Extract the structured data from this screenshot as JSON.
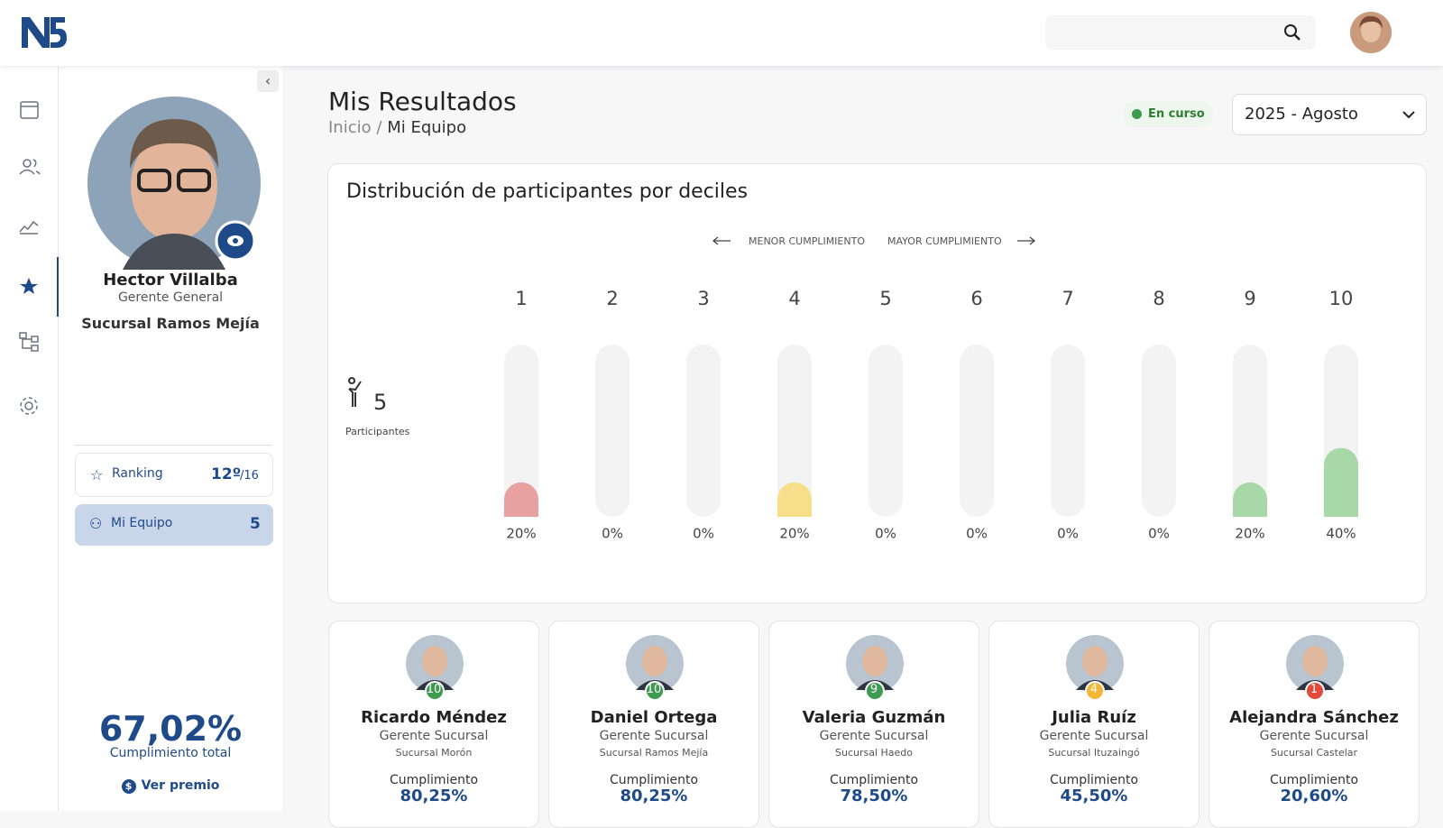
{
  "profile": {
    "name": "Hector Villalba",
    "role": "Gerente General",
    "branch": "Sucursal Ramos Mejía",
    "ranking": {
      "label": "Ranking",
      "position": "12º",
      "total": "/16"
    },
    "team": {
      "label": "Mi Equipo",
      "count": "5"
    },
    "compliance": {
      "value": "67,02%",
      "label": "Cumplimiento total"
    },
    "prize_link": "Ver premio"
  },
  "page": {
    "title": "Mis Resultados",
    "breadcrumb": [
      "Inicio",
      "Mi Equipo"
    ],
    "breadcrumb_separator": "/",
    "status": "En curso",
    "period": "2025 - Agosto"
  },
  "chart_data": {
    "type": "bar",
    "title": "Distribución de participantes por deciles",
    "legend_low": "MENOR CUMPLIMIENTO",
    "legend_high": "MAYOR CUMPLIMIENTO",
    "participants": 5,
    "participants_label": "Participantes",
    "categories": [
      "1",
      "2",
      "3",
      "4",
      "5",
      "6",
      "7",
      "8",
      "9",
      "10"
    ],
    "values": [
      20,
      0,
      0,
      20,
      0,
      0,
      0,
      0,
      20,
      40
    ],
    "value_labels": [
      "20%",
      "0%",
      "0%",
      "20%",
      "0%",
      "0%",
      "0%",
      "0%",
      "20%",
      "40%"
    ],
    "colors": [
      "#e8a1a1",
      "#e8a1a1",
      "#e8a1a1",
      "#f7df8a",
      "#f7df8a",
      "#f7df8a",
      "#f7df8a",
      "#a8d8a8",
      "#a8d8a8",
      "#a8d8a8"
    ]
  },
  "team": [
    {
      "name": "Ricardo Méndez",
      "role": "Gerente Sucursal",
      "branch": "Sucursal Morón",
      "decile": "10",
      "badge_color": "#3e9a4f",
      "compliance_label": "Cumplimiento",
      "compliance": "80,25%"
    },
    {
      "name": "Daniel Ortega",
      "role": "Gerente Sucursal",
      "branch": "Sucursal Ramos Mejía",
      "decile": "10",
      "badge_color": "#3e9a4f",
      "compliance_label": "Cumplimiento",
      "compliance": "80,25%"
    },
    {
      "name": "Valeria Guzmán",
      "role": "Gerente Sucursal",
      "branch": "Sucursal Haedo",
      "decile": "9",
      "badge_color": "#3e9a4f",
      "compliance_label": "Cumplimiento",
      "compliance": "78,50%"
    },
    {
      "name": "Julia Ruíz",
      "role": "Gerente Sucursal",
      "branch": "Sucursal Ituzaingó",
      "decile": "4",
      "badge_color": "#f2b632",
      "compliance_label": "Cumplimiento",
      "compliance": "45,50%"
    },
    {
      "name": "Alejandra Sánchez",
      "role": "Gerente Sucursal",
      "branch": "Sucursal Castelar",
      "decile": "1",
      "badge_color": "#e24a3b",
      "compliance_label": "Cumplimiento",
      "compliance": "20,60%"
    }
  ]
}
